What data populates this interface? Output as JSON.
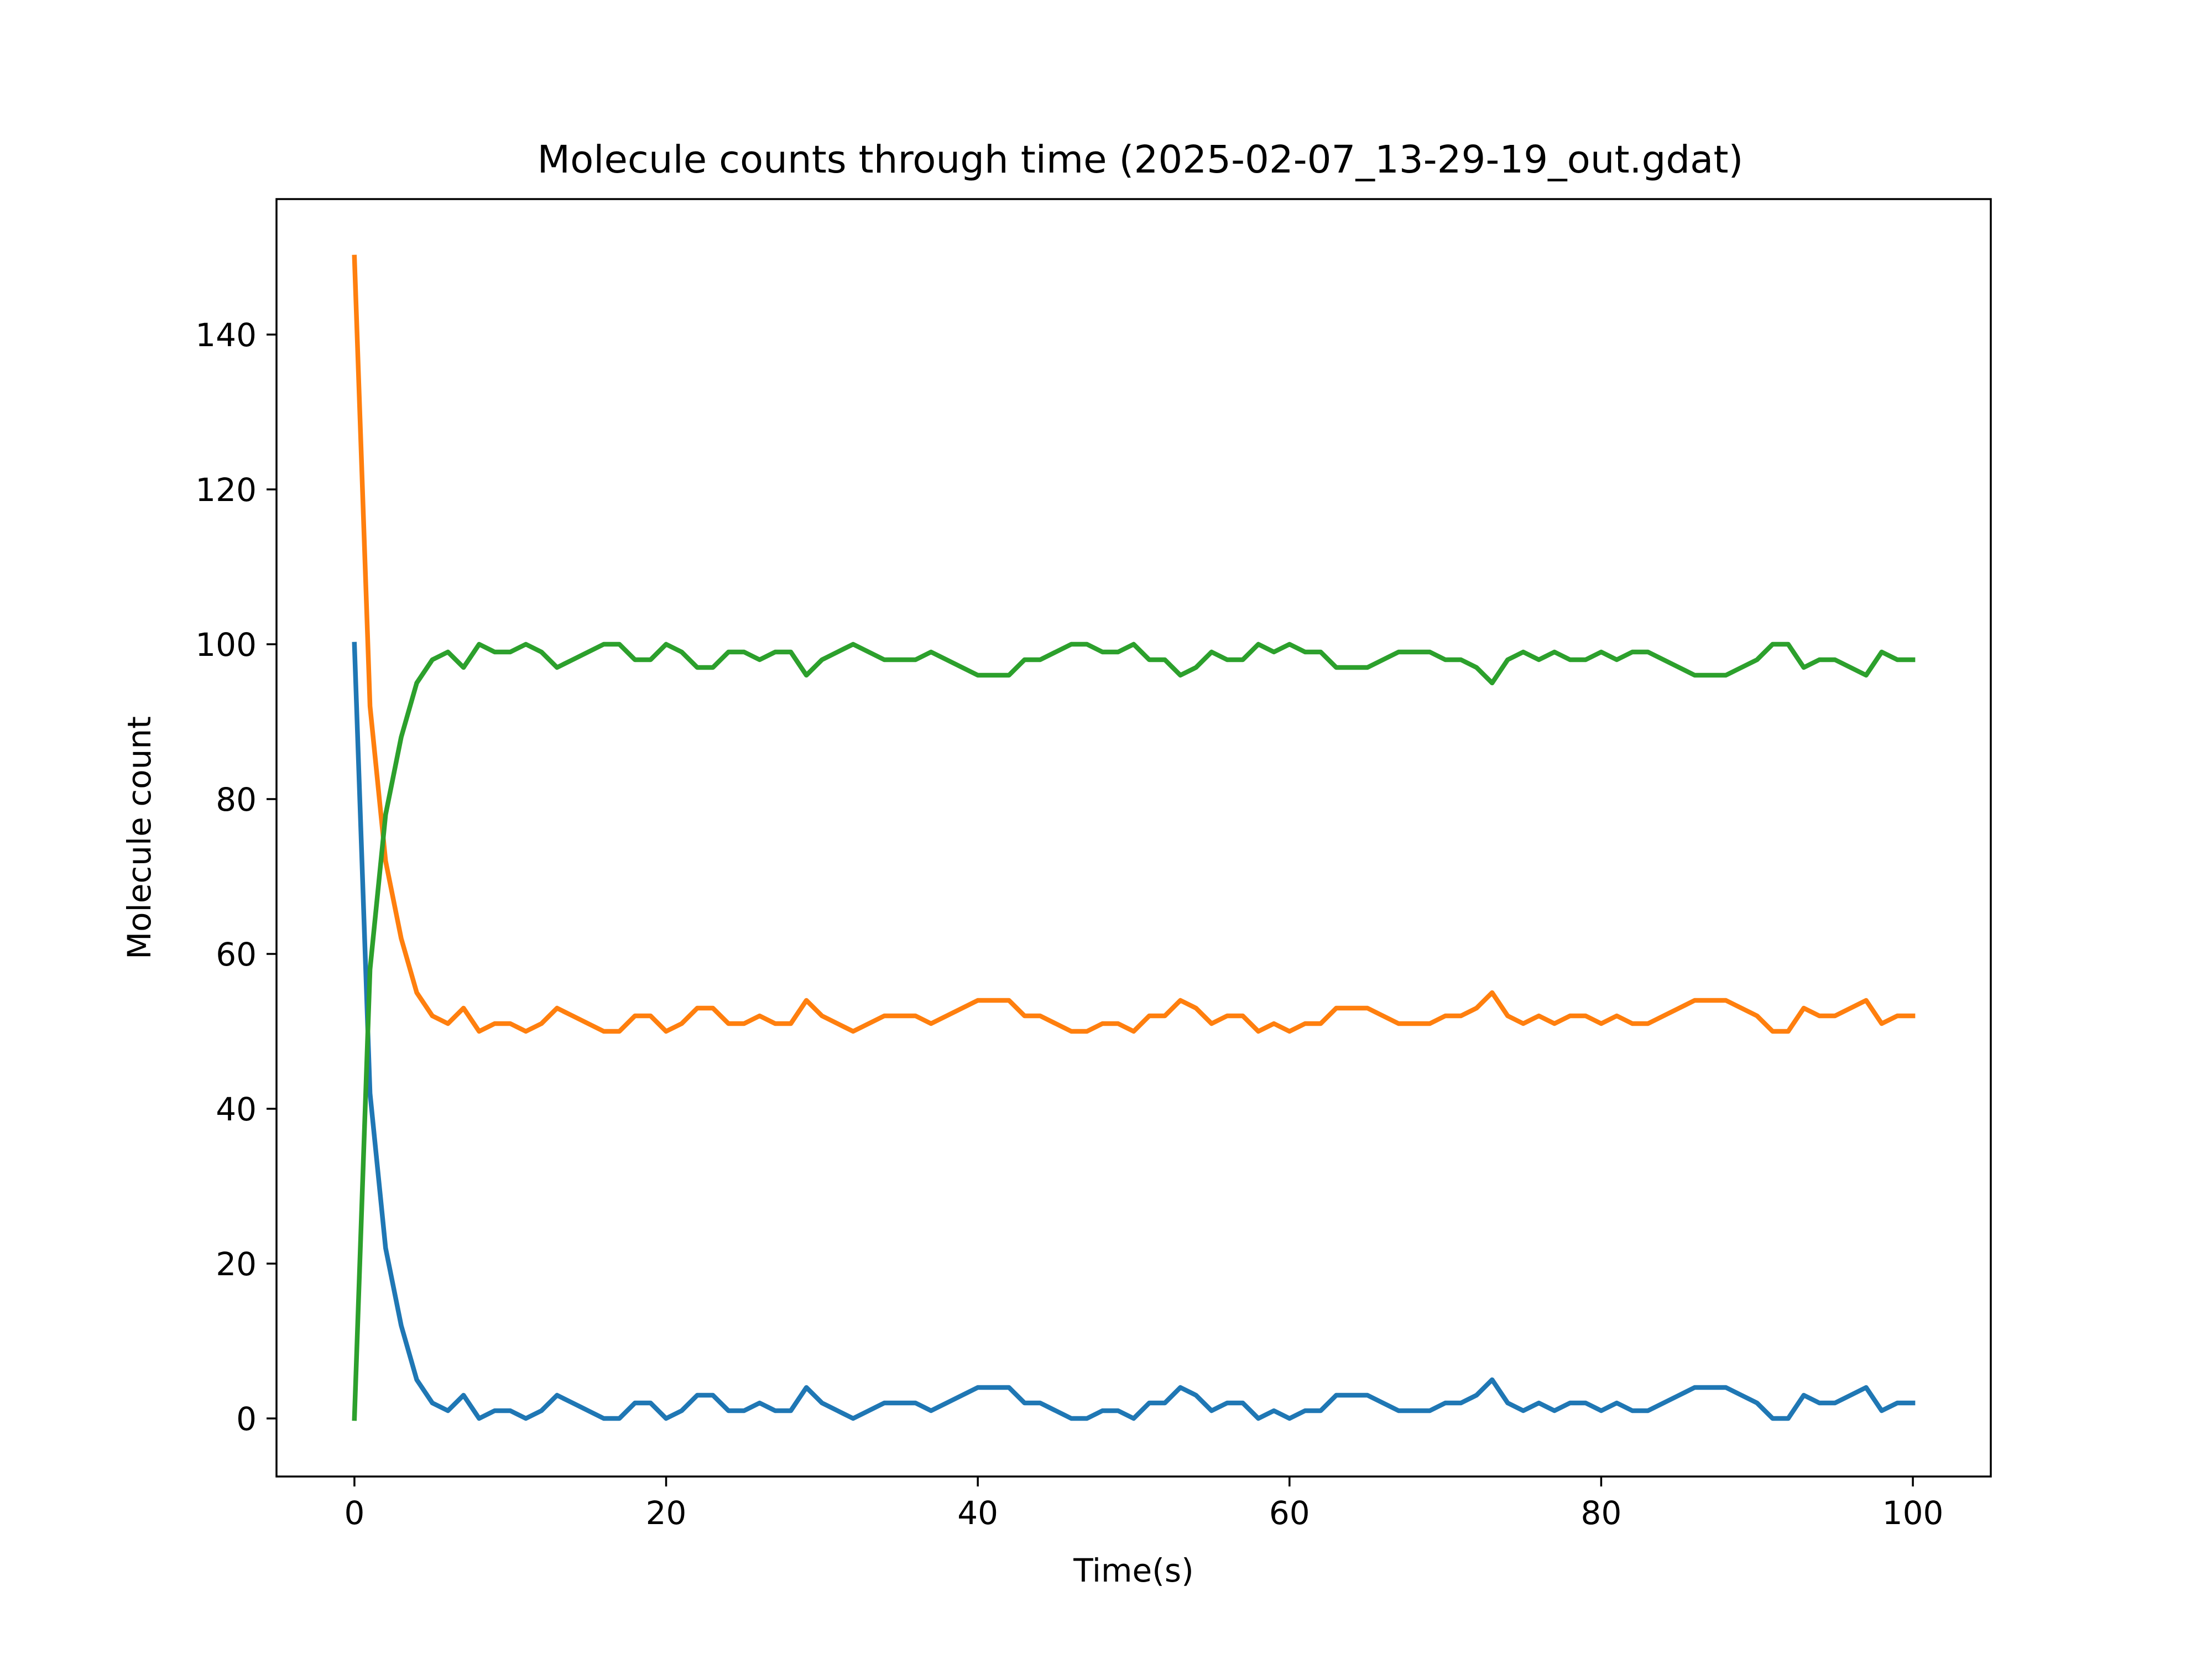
{
  "chart_data": {
    "type": "line",
    "title": "Molecule counts through time (2025-02-07_13-29-19_out.gdat)",
    "xlabel": "Time(s)",
    "ylabel": "Molecule count",
    "xlim": [
      -5,
      105
    ],
    "ylim": [
      -7.5,
      157.5
    ],
    "xticks": [
      0,
      20,
      40,
      60,
      80,
      100
    ],
    "yticks": [
      0,
      20,
      40,
      60,
      80,
      100,
      120,
      140
    ],
    "grid": false,
    "legend": "none",
    "x": [
      0,
      1,
      2,
      3,
      4,
      5,
      6,
      7,
      8,
      9,
      10,
      11,
      12,
      13,
      14,
      15,
      16,
      17,
      18,
      19,
      20,
      21,
      22,
      23,
      24,
      25,
      26,
      27,
      28,
      29,
      30,
      31,
      32,
      33,
      34,
      35,
      36,
      37,
      38,
      39,
      40,
      41,
      42,
      43,
      44,
      45,
      46,
      47,
      48,
      49,
      50,
      51,
      52,
      53,
      54,
      55,
      56,
      57,
      58,
      59,
      60,
      61,
      62,
      63,
      64,
      65,
      66,
      67,
      68,
      69,
      70,
      71,
      72,
      73,
      74,
      75,
      76,
      77,
      78,
      79,
      80,
      81,
      82,
      83,
      84,
      85,
      86,
      87,
      88,
      89,
      90,
      91,
      92,
      93,
      94,
      95,
      96,
      97,
      98,
      99,
      100
    ],
    "series": [
      {
        "color": "#1f77b4",
        "values": [
          100,
          42,
          22,
          12,
          5,
          2,
          1,
          3,
          0,
          1,
          1,
          0,
          1,
          3,
          2,
          1,
          0,
          0,
          2,
          2,
          0,
          1,
          3,
          3,
          1,
          1,
          2,
          1,
          1,
          4,
          2,
          1,
          0,
          1,
          2,
          2,
          2,
          1,
          2,
          3,
          4,
          4,
          4,
          2,
          2,
          1,
          0,
          0,
          1,
          1,
          0,
          2,
          2,
          4,
          3,
          1,
          2,
          2,
          0,
          1,
          0,
          1,
          1,
          3,
          3,
          3,
          2,
          1,
          1,
          1,
          2,
          2,
          3,
          5,
          2,
          1,
          2,
          1,
          2,
          2,
          1,
          2,
          1,
          1,
          2,
          3,
          4,
          4,
          4,
          3,
          2,
          0,
          0,
          3,
          2,
          2,
          3,
          4,
          1,
          2,
          2
        ]
      },
      {
        "color": "#ff7f0e",
        "values": [
          150,
          92,
          72,
          62,
          55,
          52,
          51,
          53,
          50,
          51,
          51,
          50,
          51,
          53,
          52,
          51,
          50,
          50,
          52,
          52,
          50,
          51,
          53,
          53,
          51,
          51,
          52,
          51,
          51,
          54,
          52,
          51,
          50,
          51,
          52,
          52,
          52,
          51,
          52,
          53,
          54,
          54,
          54,
          52,
          52,
          51,
          50,
          50,
          51,
          51,
          50,
          52,
          52,
          54,
          53,
          51,
          52,
          52,
          50,
          51,
          50,
          51,
          51,
          53,
          53,
          53,
          52,
          51,
          51,
          51,
          52,
          52,
          53,
          55,
          52,
          51,
          52,
          51,
          52,
          52,
          51,
          52,
          51,
          51,
          52,
          53,
          54,
          54,
          54,
          53,
          52,
          50,
          50,
          53,
          52,
          52,
          53,
          54,
          51,
          52,
          52
        ]
      },
      {
        "color": "#2ca02c",
        "values": [
          0,
          58,
          78,
          88,
          95,
          98,
          99,
          97,
          100,
          99,
          99,
          100,
          99,
          97,
          98,
          99,
          100,
          100,
          98,
          98,
          100,
          99,
          97,
          97,
          99,
          99,
          98,
          99,
          99,
          96,
          98,
          99,
          100,
          99,
          98,
          98,
          98,
          99,
          98,
          97,
          96,
          96,
          96,
          98,
          98,
          99,
          100,
          100,
          99,
          99,
          100,
          98,
          98,
          96,
          97,
          99,
          98,
          98,
          100,
          99,
          100,
          99,
          99,
          97,
          97,
          97,
          98,
          99,
          99,
          99,
          98,
          98,
          97,
          95,
          98,
          99,
          98,
          99,
          98,
          98,
          99,
          98,
          99,
          99,
          98,
          97,
          96,
          96,
          96,
          97,
          98,
          100,
          100,
          97,
          98,
          98,
          97,
          96,
          99,
          98,
          98
        ]
      }
    ]
  }
}
